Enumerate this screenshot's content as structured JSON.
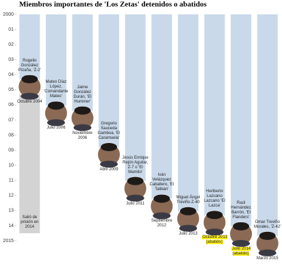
{
  "chart_data": {
    "type": "bar",
    "title": "Miembros importantes de 'Los Zetas' detenidos o abatidos",
    "categories": [
      "Rogelio González Pizaña, 'Z-2'",
      "Mateo Díaz López, 'Comandante Mateo'",
      "Jaime González Durán, 'El Hummer'",
      "Gregorio Sauceda Gamboa, 'El Caramuela'",
      "Jesús Enrique Rejón Aguilar, Z-7 o 'El Mamito'",
      "Iván Velázquez Caballero, 'El Talibán'",
      "Miguel Ángel Treviño Z-40",
      "Heriberto Lazcano Lazcano 'El Lazca'",
      "Raúl Hernández Barrón, 'El Flanders'",
      "Omar Treviño Morales, 'Z-42'"
    ],
    "values": [
      2004.79,
      2006.54,
      2006.87,
      2009.29,
      2011.54,
      2012.71,
      2013.54,
      2013.79,
      2014.54,
      2015.17
    ],
    "value_labels": [
      "Octubre 2004",
      "Julio 2006",
      "Noviembre 2006",
      "Abril 2009",
      "Julio 2011",
      "Septiembre 2012",
      "Julio 2013",
      "Octubre 2013 (abatido)",
      "Julio 2014 (abatido)",
      "Marzo 2015"
    ],
    "highlight": [
      false,
      false,
      false,
      false,
      false,
      false,
      false,
      true,
      true,
      false
    ],
    "color": "#c9d9ea",
    "highlight_color": "#ffef1a",
    "annotation": {
      "text": "Salió de prisión en 2014",
      "value": 2014.5,
      "color": "#d3d3d3"
    },
    "ylim": [
      2000,
      2015.4
    ],
    "yticks": [
      2000,
      {
        "value": 2001,
        "label": "01"
      },
      {
        "value": 2002,
        "label": "02"
      },
      {
        "value": 2003,
        "label": "03"
      },
      {
        "value": 2004,
        "label": "04"
      },
      {
        "value": 2005,
        "label": "05"
      },
      {
        "value": 2006,
        "label": "06"
      },
      {
        "value": 2007,
        "label": "07"
      },
      {
        "value": 2008,
        "label": "08"
      },
      {
        "value": 2009,
        "label": "09"
      },
      {
        "value": 2010,
        "label": "10"
      },
      {
        "value": 2011,
        "label": "11"
      },
      {
        "value": 2012,
        "label": "12"
      },
      {
        "value": 2013,
        "label": "13"
      },
      {
        "value": 2014,
        "label": "14"
      },
      2015
    ]
  }
}
